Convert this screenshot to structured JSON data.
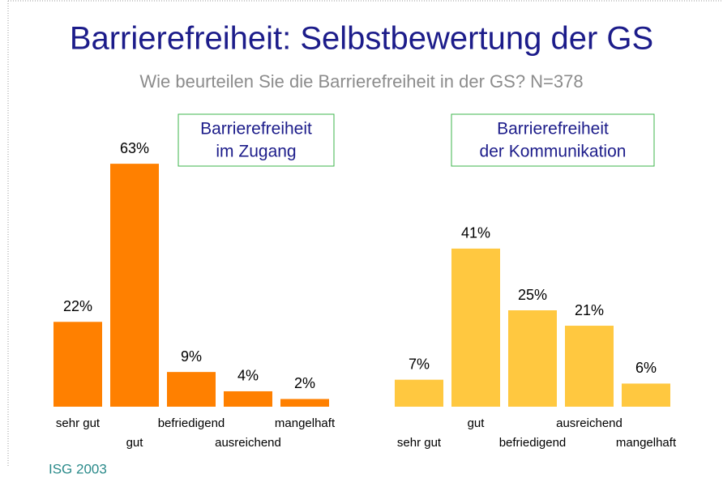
{
  "header": {
    "title": "Barrierefreiheit: Selbstbewertung der GS",
    "subtitle": "Wie beurteilen Sie die Barrierefreiheit in der GS? N=378"
  },
  "chart_data": [
    {
      "type": "bar",
      "title": [
        "Barrierefreiheit",
        "im Zugang"
      ],
      "categories": [
        "sehr gut",
        "gut",
        "befriedigend",
        "ausreichend",
        "mangelhaft"
      ],
      "values": [
        22,
        63,
        9,
        4,
        2
      ],
      "value_labels": [
        "22%",
        "63%",
        "9%",
        "4%",
        "2%"
      ],
      "color": "#ff8000"
    },
    {
      "type": "bar",
      "title": [
        "Barrierefreiheit",
        "der Kommunikation"
      ],
      "categories": [
        "sehr gut",
        "gut",
        "befriedigend",
        "ausreichend",
        "mangelhaft"
      ],
      "values": [
        7,
        41,
        25,
        21,
        6
      ],
      "value_labels": [
        "7%",
        "41%",
        "25%",
        "21%",
        "6%"
      ],
      "color": "#ffc840"
    }
  ],
  "footer": "ISG 2003"
}
